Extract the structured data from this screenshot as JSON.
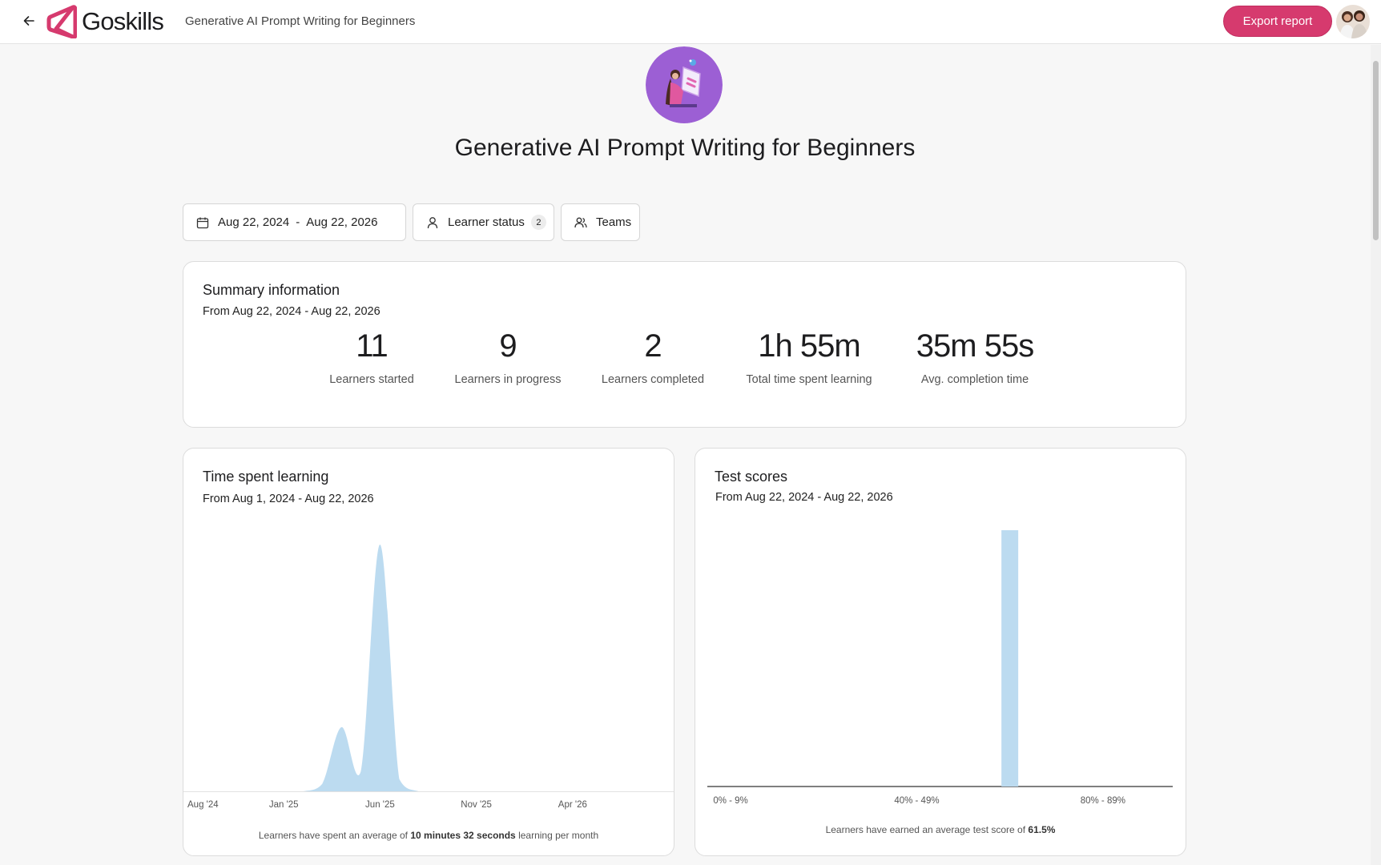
{
  "header": {
    "brand": "Goskills",
    "breadcrumb": "Generative AI Prompt Writing for Beginners",
    "export_label": "Export report",
    "brand_color": "#d63a6e"
  },
  "course": {
    "title": "Generative AI Prompt Writing for Beginners"
  },
  "filters": {
    "date_start": "Aug 22, 2024",
    "date_separator": "-",
    "date_end": "Aug 22, 2026",
    "learner_status_label": "Learner status",
    "learner_status_count": "2",
    "teams_label": "Teams"
  },
  "summary": {
    "title": "Summary information",
    "range": "From Aug 22, 2024 - Aug 22, 2026",
    "stats": [
      {
        "value": "11",
        "label": "Learners started"
      },
      {
        "value": "9",
        "label": "Learners in progress"
      },
      {
        "value": "2",
        "label": "Learners completed"
      },
      {
        "value": "1h 55m",
        "label": "Total time spent learning"
      },
      {
        "value": "35m 55s",
        "label": "Avg. completion time"
      }
    ]
  },
  "time_card": {
    "title": "Time spent learning",
    "range": "From Aug 1, 2024 - Aug 22, 2026",
    "footnote_prefix": "Learners have spent an average of",
    "footnote_value": "10 minutes 32 seconds",
    "footnote_suffix": "learning per month"
  },
  "scores_card": {
    "title": "Test scores",
    "range": "From Aug 22, 2024 - Aug 22, 2026",
    "footnote_prefix": "Learners have earned an average test score of",
    "footnote_value": "61.5%"
  },
  "chart_data": [
    {
      "type": "area",
      "title": "Time spent learning",
      "x_tick_labels": [
        "Aug '24",
        "Jan '25",
        "Jun '25",
        "Nov '25",
        "Apr '26"
      ],
      "x": [
        "2024-08",
        "2024-09",
        "2024-10",
        "2024-11",
        "2024-12",
        "2025-01",
        "2025-02",
        "2025-03",
        "2025-04",
        "2025-05",
        "2025-06",
        "2025-07",
        "2025-08",
        "2025-09",
        "2025-10",
        "2025-11",
        "2025-12",
        "2026-01",
        "2026-02",
        "2026-03",
        "2026-04",
        "2026-05",
        "2026-06",
        "2026-07",
        "2026-08"
      ],
      "values": [
        0,
        0,
        0,
        0,
        0,
        0,
        0,
        0.3,
        2.6,
        0.8,
        10,
        0.5,
        0,
        0,
        0,
        0,
        0,
        0,
        0,
        0,
        0,
        0,
        0,
        0,
        0
      ],
      "color": "#bcdbf0",
      "grid": false,
      "legend": "none"
    },
    {
      "type": "bar",
      "title": "Test scores",
      "categories": [
        "0% - 9%",
        "10% - 19%",
        "20% - 29%",
        "30% - 39%",
        "40% - 49%",
        "50% - 59%",
        "60% - 69%",
        "70% - 79%",
        "80% - 89%",
        "90% - 100%"
      ],
      "x_tick_labels": [
        "0% - 9%",
        "40% - 49%",
        "80% - 89%"
      ],
      "values": [
        0,
        0,
        0,
        0,
        0,
        0,
        1,
        0,
        0,
        0
      ],
      "color": "#bcdbf0",
      "grid": false,
      "legend": "none"
    }
  ]
}
